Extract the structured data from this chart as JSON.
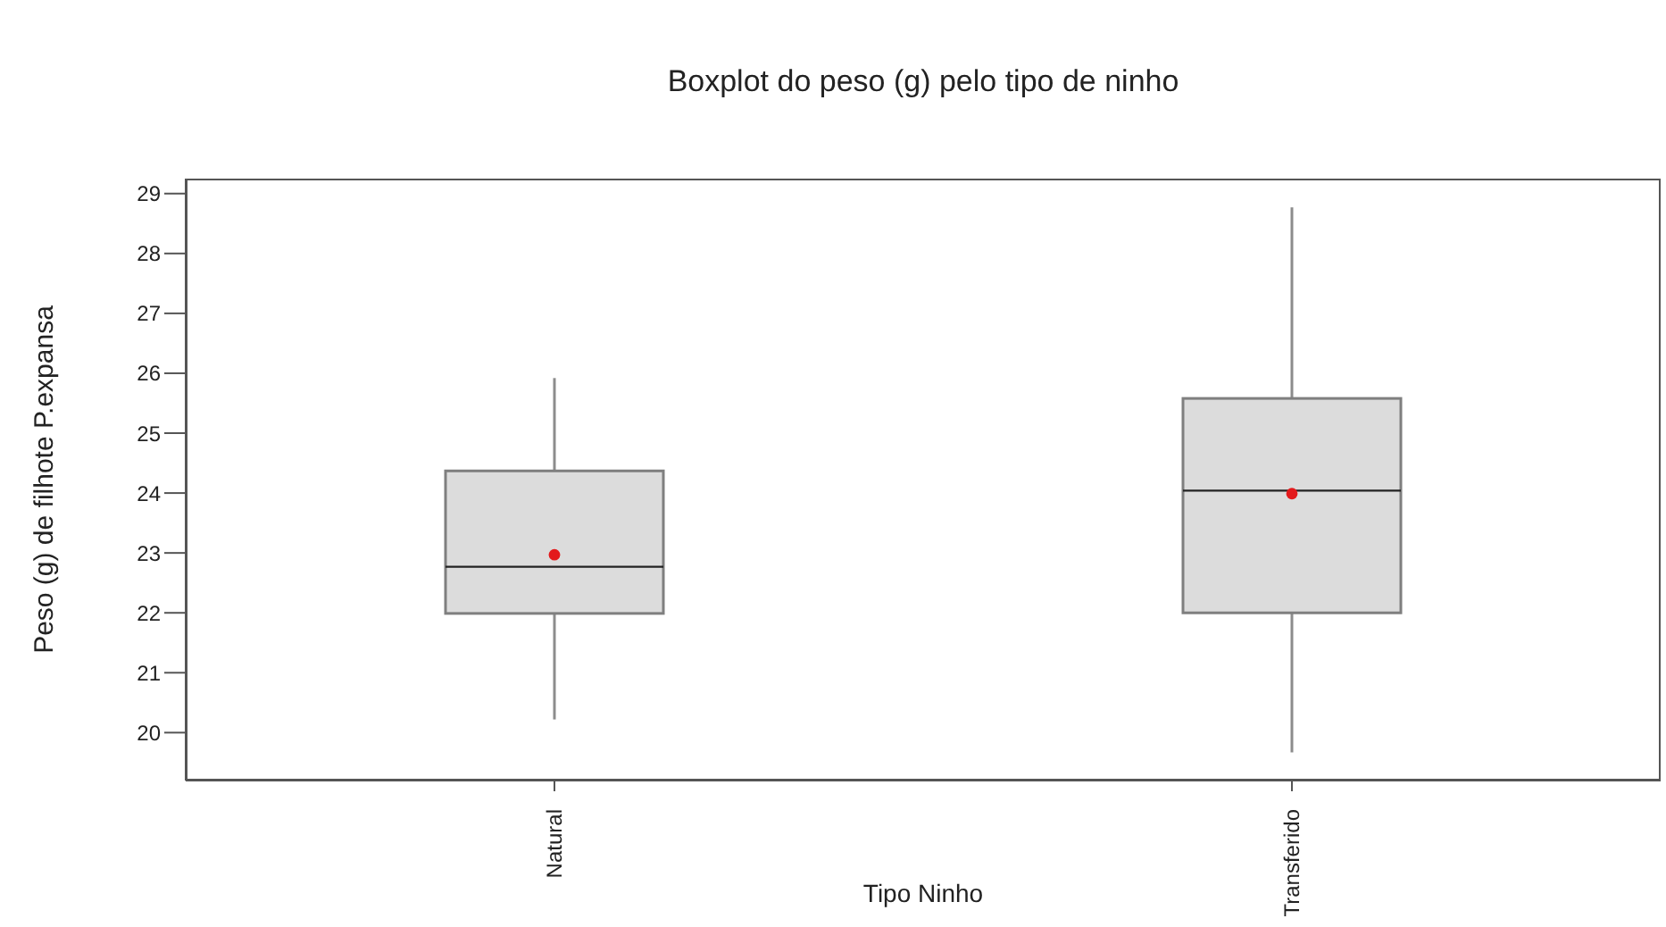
{
  "chart_data": {
    "type": "box",
    "title": "Boxplot do peso (g) pelo tipo de ninho",
    "xlabel": "Tipo Ninho",
    "ylabel": "Peso (g) de filhote P.expansa",
    "categories": [
      "Natural",
      "Transferido"
    ],
    "boxes": [
      {
        "low": 20.22,
        "q1": 21.99,
        "median": 22.77,
        "q3": 24.37,
        "high": 25.92,
        "mean": 22.97
      },
      {
        "low": 19.67,
        "q1": 22.0,
        "median": 24.04,
        "q3": 25.58,
        "high": 28.77,
        "mean": 23.99
      }
    ],
    "ylim": [
      19.2,
      29.25
    ],
    "yticks": [
      20,
      21,
      22,
      23,
      24,
      25,
      26,
      27,
      28,
      29
    ]
  }
}
